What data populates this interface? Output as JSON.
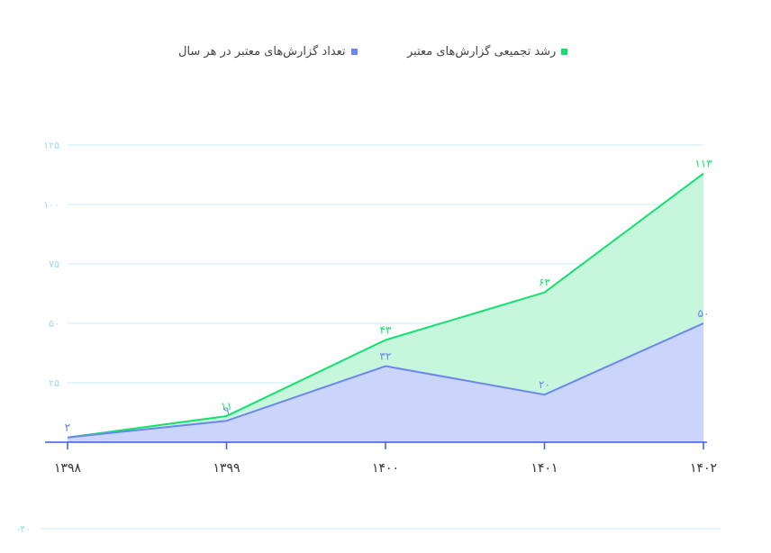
{
  "legend": [
    {
      "label": "رشد تجمیعی گزارش‌های معتبر",
      "color": "#14e06e"
    },
    {
      "label": "تعداد گزارش‌های معتبر در هر سال",
      "color": "#6b86f0"
    }
  ],
  "chart_data": {
    "type": "area",
    "categories": [
      "۱۳۹۸",
      "۱۳۹۹",
      "۱۴۰۰",
      "۱۴۰۱",
      "۱۴۰۲"
    ],
    "series": [
      {
        "name": "رشد تجمیعی گزارش‌های معتبر",
        "values": [
          2,
          11,
          43,
          63,
          113
        ],
        "labels": [
          "۲",
          "۱۱",
          "۴۳",
          "۶۳",
          "۱۱۳"
        ],
        "line_color": "#14e06e",
        "fill_color": "#c6f7dd"
      },
      {
        "name": "تعداد گزارش‌های معتبر در هر سال",
        "values": [
          2,
          9,
          32,
          20,
          50
        ],
        "labels": [
          "۲",
          "۹",
          "۳۲",
          "۲۰",
          "۵۰"
        ],
        "line_color": "#6b86f0",
        "fill_color": "#cbd5fb"
      }
    ],
    "ylim": [
      0,
      125
    ],
    "yticks": [
      25,
      50,
      75,
      100,
      125
    ],
    "ytick_labels": [
      "۲۵",
      "۵۰",
      "۷۵",
      "۱۰۰",
      "۱۲۵"
    ],
    "extra_gridline": {
      "value": -40,
      "label": "-۴۰"
    },
    "grid": true,
    "legend_position": "top",
    "grid_color": "#c3ecfa",
    "ytick_color": "#9edcf5",
    "axis_color": "#3b5bdb"
  }
}
